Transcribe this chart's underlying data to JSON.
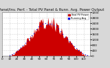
{
  "title": "A. PV Panel/Inv. Perf. - Total PV Panel & Runn. Avg. Power Output",
  "bar_color": "#cc0000",
  "dot_color": "#0000ee",
  "bg_color": "#d8d8d8",
  "plot_bg": "#ffffff",
  "grid_color": "#aaaaaa",
  "legend_items": [
    "Total PV Power",
    "Running Avg"
  ],
  "legend_colors": [
    "#cc0000",
    "#0000ee"
  ],
  "n_points": 120,
  "peak_index": 62,
  "peak_value": 3000,
  "ymax": 3200,
  "ytick_vals": [
    0,
    400,
    800,
    1200,
    1600,
    2000,
    2400,
    2800,
    3200
  ],
  "title_fontsize": 3.8,
  "axis_fontsize": 3.0,
  "legend_fontsize": 2.5
}
